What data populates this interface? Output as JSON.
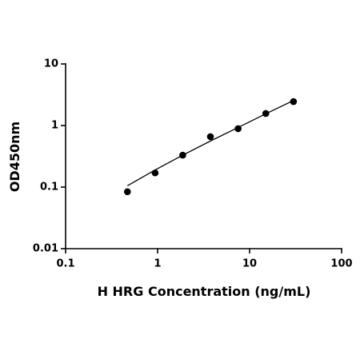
{
  "chart_data": {
    "type": "scatter",
    "x_label": "H HRG Concentration (ng/mL)",
    "y_label": "OD450nm",
    "xscale": "log",
    "yscale": "log",
    "xlim": [
      0.1,
      100
    ],
    "ylim": [
      0.01,
      10
    ],
    "xticks": [
      0.1,
      1,
      10,
      100
    ],
    "yticks": [
      0.01,
      0.1,
      1,
      10
    ],
    "x": [
      0.47,
      0.94,
      1.875,
      3.75,
      7.5,
      15,
      30
    ],
    "series": [
      {
        "mode": "markers",
        "color": "#000000",
        "values": [
          0.084,
          0.17,
          0.33,
          0.66,
          0.89,
          1.57,
          2.45
        ]
      },
      {
        "mode": "line",
        "color": "#000000",
        "values": [
          0.105,
          0.19,
          0.33,
          0.56,
          0.93,
          1.55,
          2.55
        ]
      }
    ]
  }
}
